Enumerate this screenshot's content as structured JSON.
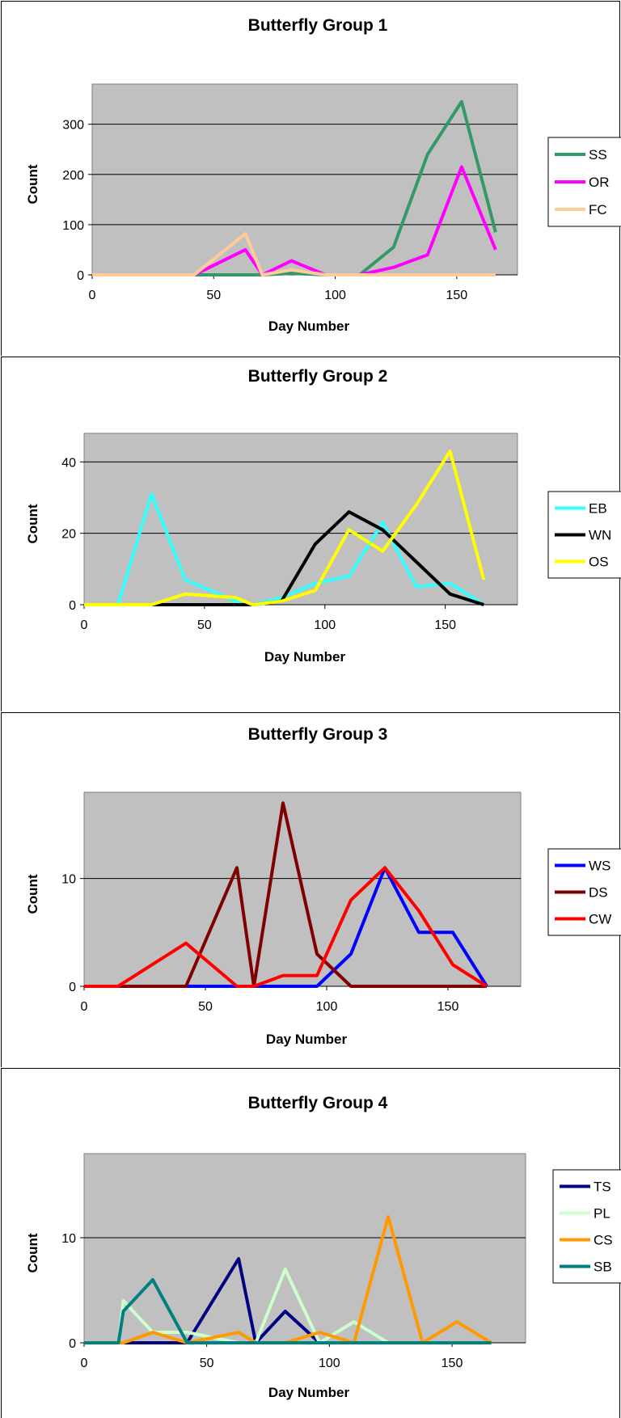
{
  "chart_data": [
    {
      "type": "line",
      "title": "Butterfly Group 1",
      "xlabel": "Day Number",
      "ylabel": "Count",
      "xlim": [
        0,
        175
      ],
      "ylim": [
        0,
        380
      ],
      "xticks": [
        0,
        50,
        100,
        150
      ],
      "yticks": [
        0,
        100,
        200,
        300
      ],
      "grid": true,
      "legend_position": "right",
      "series": [
        {
          "name": "SS",
          "color": "#339966",
          "x": [
            0,
            14,
            28,
            42,
            63,
            70,
            82,
            96,
            110,
            124,
            138,
            152,
            166
          ],
          "y": [
            0,
            0,
            0,
            0,
            0,
            0,
            3,
            0,
            0,
            55,
            240,
            345,
            85
          ]
        },
        {
          "name": "OR",
          "color": "#ff00ff",
          "x": [
            0,
            14,
            28,
            42,
            63,
            70,
            82,
            96,
            110,
            124,
            138,
            152,
            166
          ],
          "y": [
            0,
            0,
            0,
            0,
            50,
            0,
            28,
            0,
            0,
            15,
            40,
            215,
            50
          ]
        },
        {
          "name": "FC",
          "color": "#ffcc99",
          "x": [
            0,
            14,
            28,
            42,
            63,
            70,
            82,
            96,
            110,
            124,
            138,
            152,
            166
          ],
          "y": [
            0,
            0,
            0,
            0,
            82,
            0,
            10,
            0,
            0,
            0,
            0,
            0,
            0
          ]
        }
      ]
    },
    {
      "type": "line",
      "title": "Butterfly Group 2",
      "xlabel": "Day Number",
      "ylabel": "Count",
      "xlim": [
        0,
        180
      ],
      "ylim": [
        0,
        48
      ],
      "xticks": [
        0,
        50,
        100,
        150
      ],
      "yticks": [
        0,
        20,
        40
      ],
      "grid": true,
      "legend_position": "right",
      "series": [
        {
          "name": "EB",
          "color": "#33ffff",
          "x": [
            0,
            14,
            28,
            42,
            63,
            70,
            82,
            96,
            110,
            124,
            138,
            152,
            166
          ],
          "y": [
            0,
            0,
            31,
            7,
            1,
            0,
            2,
            6,
            8,
            23,
            5,
            6,
            0
          ]
        },
        {
          "name": "WN",
          "color": "#000000",
          "x": [
            0,
            14,
            28,
            42,
            63,
            70,
            82,
            96,
            110,
            124,
            138,
            152,
            166
          ],
          "y": [
            0,
            0,
            0,
            0,
            0,
            0,
            1,
            17,
            26,
            21,
            12,
            3,
            0
          ]
        },
        {
          "name": "OS",
          "color": "#ffff00",
          "x": [
            0,
            14,
            28,
            42,
            63,
            70,
            82,
            96,
            110,
            124,
            138,
            152,
            166
          ],
          "y": [
            0,
            0,
            0,
            3,
            2,
            0,
            1,
            4,
            21,
            15,
            28,
            43,
            7
          ]
        }
      ]
    },
    {
      "type": "line",
      "title": "Butterfly Group 3",
      "xlabel": "Day Number",
      "ylabel": "Count",
      "xlim": [
        0,
        180
      ],
      "ylim": [
        0,
        18
      ],
      "xticks": [
        0,
        50,
        100,
        150
      ],
      "yticks": [
        0,
        10
      ],
      "grid": true,
      "legend_position": "right",
      "series": [
        {
          "name": "WS",
          "color": "#0000ff",
          "x": [
            0,
            14,
            28,
            42,
            63,
            70,
            82,
            96,
            110,
            124,
            138,
            152,
            166
          ],
          "y": [
            0,
            0,
            0,
            0,
            0,
            0,
            0,
            0,
            3,
            11,
            5,
            5,
            0
          ]
        },
        {
          "name": "DS",
          "color": "#800000",
          "x": [
            0,
            14,
            28,
            42,
            63,
            70,
            82,
            96,
            110,
            124,
            138,
            152,
            166
          ],
          "y": [
            0,
            0,
            0,
            0,
            11,
            0,
            17,
            3,
            0,
            0,
            0,
            0,
            0
          ]
        },
        {
          "name": "CW",
          "color": "#ff0000",
          "x": [
            0,
            14,
            28,
            42,
            63,
            70,
            82,
            96,
            110,
            124,
            138,
            152,
            166
          ],
          "y": [
            0,
            0,
            2,
            4,
            0,
            0,
            1,
            1,
            8,
            11,
            7,
            2,
            0
          ]
        }
      ]
    },
    {
      "type": "line",
      "title": "Butterfly Group 4",
      "xlabel": "Day Number",
      "ylabel": "Count",
      "xlim": [
        0,
        180
      ],
      "ylim": [
        0,
        18
      ],
      "xticks": [
        0,
        50,
        100,
        150
      ],
      "yticks": [
        0,
        10
      ],
      "grid": true,
      "legend_position": "right",
      "series": [
        {
          "name": "TS",
          "color": "#000080",
          "x": [
            0,
            14,
            16,
            28,
            42,
            63,
            70,
            82,
            96,
            110,
            124,
            138,
            152,
            166
          ],
          "y": [
            0,
            0,
            0,
            0,
            0,
            8,
            0,
            3,
            0,
            0,
            0,
            0,
            0,
            0
          ]
        },
        {
          "name": "PL",
          "color": "#ccffcc",
          "x": [
            0,
            14,
            16,
            28,
            42,
            63,
            70,
            82,
            96,
            110,
            124,
            138,
            152,
            166
          ],
          "y": [
            0,
            0,
            4,
            1,
            1,
            0,
            0,
            7,
            0,
            2,
            0,
            0,
            0,
            0
          ]
        },
        {
          "name": "CS",
          "color": "#ff9900",
          "x": [
            0,
            14,
            16,
            28,
            42,
            63,
            70,
            82,
            96,
            110,
            124,
            138,
            152,
            166
          ],
          "y": [
            0,
            0,
            0,
            1,
            0,
            1,
            0,
            0,
            1,
            0,
            12,
            0,
            2,
            0
          ]
        },
        {
          "name": "SB",
          "color": "#008080",
          "x": [
            0,
            14,
            16,
            28,
            42,
            63,
            70,
            82,
            96,
            110,
            124,
            138,
            152,
            166
          ],
          "y": [
            0,
            0,
            3,
            6,
            0,
            0,
            0,
            0,
            0,
            0,
            0,
            0,
            0,
            0
          ]
        }
      ]
    }
  ]
}
